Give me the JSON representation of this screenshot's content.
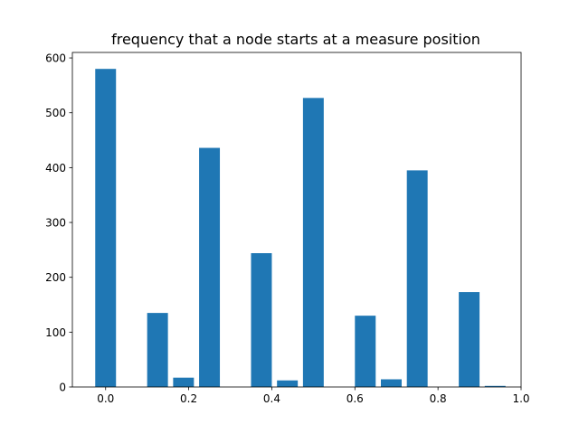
{
  "chart_data": {
    "type": "bar",
    "title": "frequency that a node starts at a measure position",
    "xlabel": "",
    "ylabel": "",
    "xlim": [
      -0.08,
      1.0
    ],
    "ylim": [
      0,
      610
    ],
    "bar_width": 0.05,
    "bar_color": "#1f77b4",
    "grid": false,
    "x": [
      0.0,
      0.125,
      0.1875,
      0.25,
      0.375,
      0.4375,
      0.5,
      0.625,
      0.6875,
      0.75,
      0.875,
      0.9375
    ],
    "values": [
      580,
      135,
      17,
      436,
      244,
      12,
      527,
      130,
      14,
      395,
      173,
      2
    ],
    "x_ticks": [
      {
        "value": 0.0,
        "label": "0.0"
      },
      {
        "value": 0.2,
        "label": "0.2"
      },
      {
        "value": 0.4,
        "label": "0.4"
      },
      {
        "value": 0.6,
        "label": "0.6"
      },
      {
        "value": 0.8,
        "label": "0.8"
      },
      {
        "value": 1.0,
        "label": "1.0"
      }
    ],
    "y_ticks": [
      {
        "value": 0,
        "label": "0"
      },
      {
        "value": 100,
        "label": "100"
      },
      {
        "value": 200,
        "label": "200"
      },
      {
        "value": 300,
        "label": "300"
      },
      {
        "value": 400,
        "label": "400"
      },
      {
        "value": 500,
        "label": "500"
      },
      {
        "value": 600,
        "label": "600"
      }
    ]
  }
}
